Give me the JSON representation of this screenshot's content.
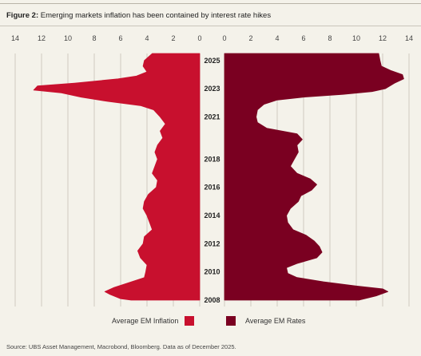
{
  "figure": {
    "label": "Figure 2:",
    "title": "Emerging markets inflation has been contained by interest rate hikes"
  },
  "source": "Source: UBS Asset Management, Macrobond, Bloomberg. Data as of December 2025.",
  "chart_data": {
    "type": "area",
    "orientation": "horizontal-butterfly",
    "xlim_left": [
      14,
      0
    ],
    "xlim_right": [
      0,
      14
    ],
    "x_ticks_left": [
      "14",
      "12",
      "10",
      "8",
      "6",
      "4",
      "2",
      "0"
    ],
    "x_ticks_right": [
      "0",
      "2",
      "4",
      "6",
      "8",
      "10",
      "12",
      "14"
    ],
    "year_labels": [
      "2025",
      "2023",
      "2021",
      "2018",
      "2016",
      "2014",
      "2012",
      "2010",
      "2008"
    ],
    "y_range": [
      2008,
      2025.5
    ],
    "grid": true,
    "legend_position": "bottom-center",
    "series": [
      {
        "name": "Average EM Inflation",
        "color": "#c8102e",
        "points": [
          [
            2025.5,
            3.6
          ],
          [
            2025.0,
            4.2
          ],
          [
            2024.6,
            4.3
          ],
          [
            2024.2,
            4.0
          ],
          [
            2023.9,
            4.8
          ],
          [
            2023.7,
            6.2
          ],
          [
            2023.4,
            9.5
          ],
          [
            2023.2,
            12.3
          ],
          [
            2022.9,
            12.6
          ],
          [
            2022.7,
            10.5
          ],
          [
            2022.4,
            9.0
          ],
          [
            2022.1,
            7.0
          ],
          [
            2021.8,
            4.5
          ],
          [
            2021.5,
            3.5
          ],
          [
            2021.0,
            3.0
          ],
          [
            2020.5,
            2.6
          ],
          [
            2020.0,
            3.0
          ],
          [
            2019.5,
            2.8
          ],
          [
            2019.0,
            3.2
          ],
          [
            2018.5,
            3.4
          ],
          [
            2018.0,
            3.2
          ],
          [
            2017.5,
            3.4
          ],
          [
            2017.0,
            3.6
          ],
          [
            2016.5,
            3.2
          ],
          [
            2016.0,
            3.3
          ],
          [
            2015.5,
            3.9
          ],
          [
            2015.0,
            4.2
          ],
          [
            2014.5,
            4.3
          ],
          [
            2014.0,
            4.0
          ],
          [
            2013.5,
            3.8
          ],
          [
            2013.0,
            3.6
          ],
          [
            2012.5,
            4.2
          ],
          [
            2012.0,
            4.3
          ],
          [
            2011.5,
            4.7
          ],
          [
            2011.0,
            4.5
          ],
          [
            2010.5,
            4.0
          ],
          [
            2010.0,
            4.1
          ],
          [
            2009.6,
            4.2
          ],
          [
            2009.2,
            5.5
          ],
          [
            2008.9,
            6.5
          ],
          [
            2008.6,
            7.2
          ],
          [
            2008.4,
            6.8
          ],
          [
            2008.1,
            6.0
          ],
          [
            2008.0,
            5.2
          ]
        ]
      },
      {
        "name": "Average EM Rates",
        "color": "#7a0021",
        "points": [
          [
            2025.5,
            11.7
          ],
          [
            2025.0,
            11.8
          ],
          [
            2024.6,
            11.9
          ],
          [
            2024.3,
            12.6
          ],
          [
            2024.0,
            13.5
          ],
          [
            2023.7,
            13.6
          ],
          [
            2023.4,
            12.9
          ],
          [
            2023.0,
            12.2
          ],
          [
            2022.8,
            11.2
          ],
          [
            2022.6,
            9.0
          ],
          [
            2022.4,
            6.0
          ],
          [
            2022.2,
            4.0
          ],
          [
            2021.9,
            3.0
          ],
          [
            2021.5,
            2.5
          ],
          [
            2021.0,
            2.4
          ],
          [
            2020.6,
            2.5
          ],
          [
            2020.2,
            3.2
          ],
          [
            2019.8,
            5.5
          ],
          [
            2019.4,
            5.9
          ],
          [
            2019.0,
            5.5
          ],
          [
            2018.5,
            5.6
          ],
          [
            2018.0,
            5.3
          ],
          [
            2017.5,
            5.0
          ],
          [
            2017.0,
            5.5
          ],
          [
            2016.6,
            6.5
          ],
          [
            2016.2,
            7.0
          ],
          [
            2015.8,
            6.6
          ],
          [
            2015.4,
            5.8
          ],
          [
            2015.0,
            5.6
          ],
          [
            2014.5,
            5.0
          ],
          [
            2014.0,
            4.7
          ],
          [
            2013.5,
            4.8
          ],
          [
            2013.0,
            5.2
          ],
          [
            2012.6,
            6.2
          ],
          [
            2012.2,
            6.8
          ],
          [
            2011.8,
            7.2
          ],
          [
            2011.4,
            7.4
          ],
          [
            2011.0,
            7.0
          ],
          [
            2010.6,
            5.5
          ],
          [
            2010.3,
            4.7
          ],
          [
            2009.9,
            4.8
          ],
          [
            2009.6,
            5.5
          ],
          [
            2009.3,
            7.5
          ],
          [
            2009.0,
            10.0
          ],
          [
            2008.8,
            12.0
          ],
          [
            2008.6,
            12.4
          ],
          [
            2008.3,
            11.5
          ],
          [
            2008.0,
            10.2
          ]
        ]
      }
    ]
  }
}
